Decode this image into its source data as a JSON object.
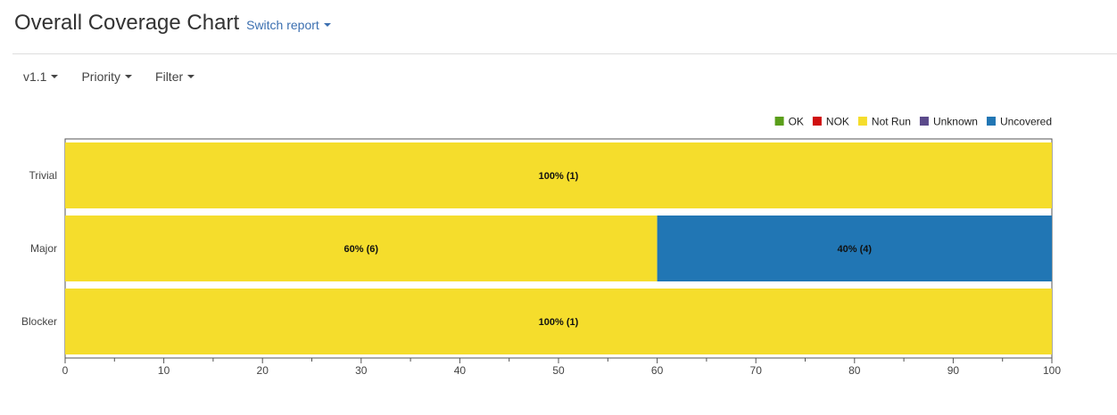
{
  "header": {
    "title": "Overall Coverage Chart",
    "switch_report_label": "Switch report"
  },
  "toolbar": {
    "version_label": "v1.1",
    "priority_label": "Priority",
    "filter_label": "Filter"
  },
  "chart_data": {
    "type": "bar",
    "orientation": "horizontal",
    "stacked": true,
    "categories": [
      "Trivial",
      "Major",
      "Blocker"
    ],
    "xlim": [
      0,
      100
    ],
    "xticks": [
      0,
      10,
      20,
      30,
      40,
      50,
      60,
      70,
      80,
      90,
      100
    ],
    "legend_position": "top-right",
    "series": [
      {
        "name": "OK",
        "color": "#5a9e1a",
        "values": [
          0,
          0,
          0
        ],
        "labels": [
          "",
          "",
          ""
        ]
      },
      {
        "name": "NOK",
        "color": "#d01010",
        "values": [
          0,
          0,
          0
        ],
        "labels": [
          "",
          "",
          ""
        ]
      },
      {
        "name": "Not Run",
        "color": "#f5dd2c",
        "values": [
          100,
          60,
          100
        ],
        "labels": [
          "100% (1)",
          "60% (6)",
          "100% (1)"
        ]
      },
      {
        "name": "Unknown",
        "color": "#5b4a8b",
        "values": [
          0,
          0,
          0
        ],
        "labels": [
          "",
          "",
          ""
        ]
      },
      {
        "name": "Uncovered",
        "color": "#2176b4",
        "values": [
          0,
          40,
          0
        ],
        "labels": [
          "",
          "40% (4)",
          ""
        ]
      }
    ]
  }
}
